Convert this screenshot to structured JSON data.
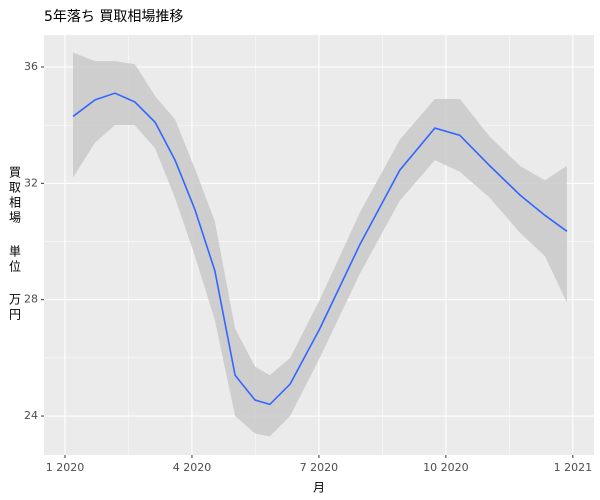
{
  "chart_data": {
    "type": "smooth",
    "title": "5年落ち 買取相場推移",
    "x_label": "月",
    "y_label": [
      "買取相場",
      "単位",
      "万円"
    ],
    "x": [
      1.19,
      1.71,
      2.18,
      2.65,
      3.13,
      3.6,
      4.07,
      4.54,
      5.02,
      5.49,
      5.84,
      6.32,
      7.02,
      7.97,
      8.91,
      9.74,
      10.33,
      11.04,
      11.75,
      12.34,
      12.86
    ],
    "values": [
      34.3,
      34.87,
      35.1,
      34.8,
      34.1,
      32.8,
      31.1,
      29.0,
      25.4,
      24.55,
      24.4,
      25.1,
      27.0,
      29.9,
      32.45,
      33.9,
      33.65,
      32.6,
      31.6,
      30.9,
      30.35
    ],
    "lower": [
      32.2,
      33.4,
      34.0,
      34.0,
      33.2,
      31.5,
      29.5,
      27.3,
      24.0,
      23.4,
      23.3,
      24.0,
      26.0,
      28.9,
      31.4,
      32.8,
      32.4,
      31.5,
      30.3,
      29.5,
      27.9
    ],
    "upper": [
      36.5,
      36.2,
      36.2,
      36.1,
      35.0,
      34.2,
      32.5,
      30.7,
      27.0,
      25.7,
      25.4,
      26.0,
      28.0,
      31.0,
      33.5,
      34.9,
      34.9,
      33.6,
      32.6,
      32.1,
      32.6
    ],
    "color": "#3366ff",
    "band_color": "#c9c9c9",
    "xlim": [
      0.504,
      13.5
    ],
    "ylim": [
      22.66,
      37.1
    ],
    "xticks": [
      {
        "value": 1,
        "label": "1 2020"
      },
      {
        "value": 4,
        "label": "4 2020"
      },
      {
        "value": 7,
        "label": "7 2020"
      },
      {
        "value": 10,
        "label": "10 2020"
      },
      {
        "value": 13,
        "label": "1 2021"
      }
    ],
    "yticks": [
      24,
      28,
      32,
      36
    ],
    "grid": true
  }
}
